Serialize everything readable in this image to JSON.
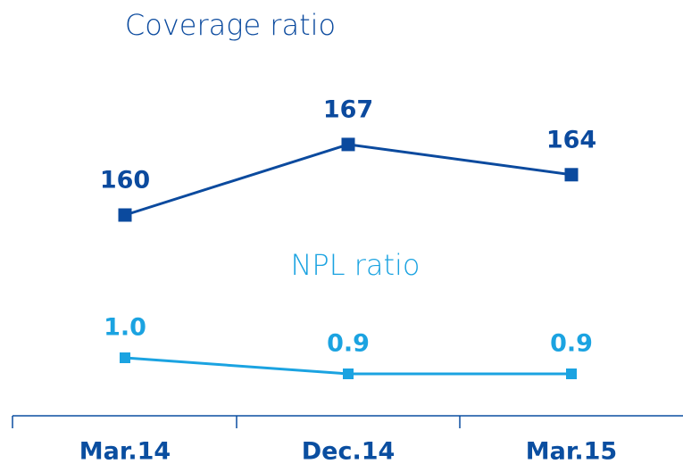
{
  "chart_data": {
    "type": "line",
    "categories": [
      "Mar.14",
      "Dec.14",
      "Mar.15"
    ],
    "series": [
      {
        "name": "Coverage ratio",
        "color": "#0b4a9e",
        "values": [
          160,
          167,
          164
        ]
      },
      {
        "name": "NPL ratio",
        "color": "#1ba3e1",
        "values": [
          1.0,
          0.9,
          0.9
        ],
        "value_labels": [
          "1.0",
          "0.9",
          "0.9"
        ],
        "axis": "y2"
      }
    ]
  }
}
